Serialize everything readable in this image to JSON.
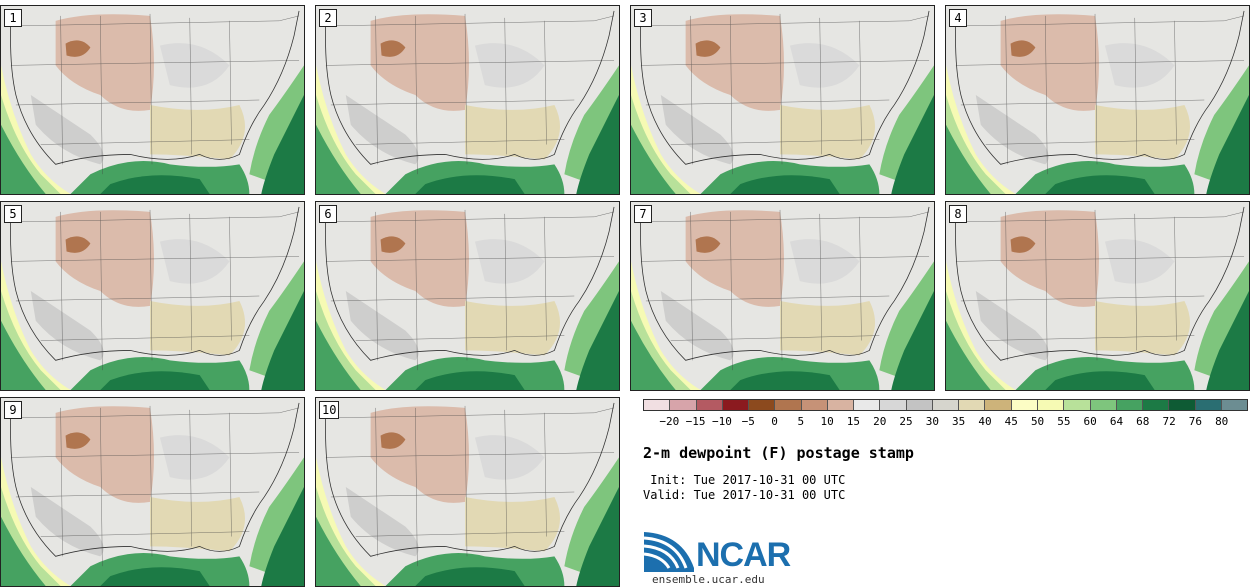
{
  "panels": [
    "1",
    "2",
    "3",
    "4",
    "5",
    "6",
    "7",
    "8",
    "9",
    "10"
  ],
  "legend": {
    "labels": [
      "−20",
      "−15",
      "−10",
      "−5",
      "0",
      "5",
      "10",
      "15",
      "20",
      "25",
      "30",
      "35",
      "40",
      "45",
      "50",
      "55",
      "60",
      "64",
      "68",
      "72",
      "76",
      "80"
    ],
    "colors": [
      "#f1dfe2",
      "#d7a4aa",
      "#b45a62",
      "#8b1a1f",
      "#8c4a1e",
      "#b0754f",
      "#c69277",
      "#d8b3a1",
      "#e9e9e9",
      "#d7d7d7",
      "#c3c3c3",
      "#d6d5cd",
      "#e2d9b4",
      "#cdb37a",
      "#fcfdc5",
      "#f6fab4",
      "#b8e19a",
      "#7ec57d",
      "#46a261",
      "#1c7a45",
      "#0e5b34",
      "#2a6e72",
      "#6c8d92"
    ]
  },
  "title": "2-m dewpoint (F) postage stamp",
  "init": " Init: Tue 2017-10-31 00 UTC",
  "valid": "Valid: Tue 2017-10-31 00 UTC",
  "logo_text": "NCAR",
  "url": "ensemble.ucar.edu"
}
